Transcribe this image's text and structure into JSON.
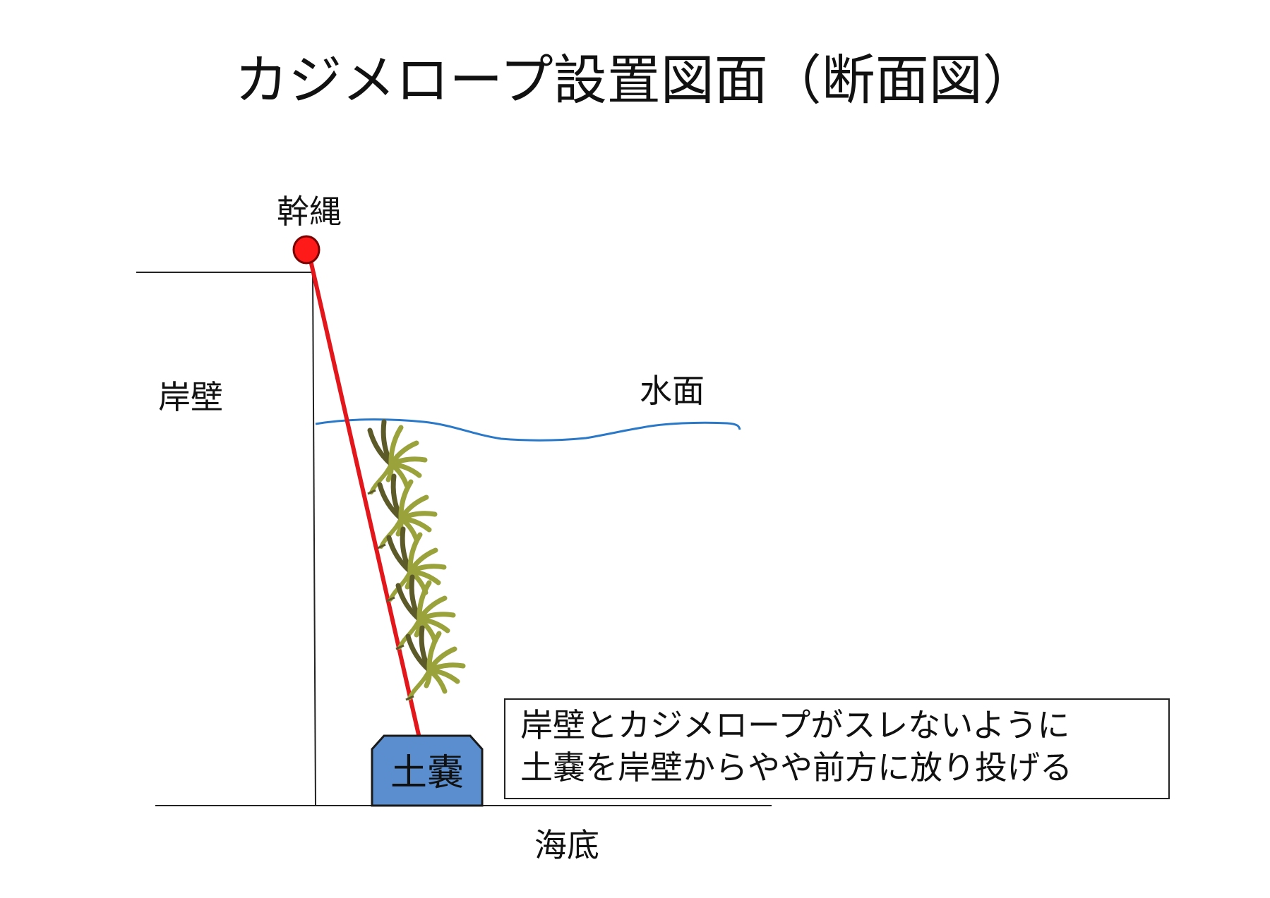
{
  "title": "カジメロープ設置図面（断面図）",
  "labels": {
    "trunk_rope": "幹縄",
    "quay_wall": "岸壁",
    "water_surface": "水面",
    "seabed": "海底",
    "sandbag": "土嚢"
  },
  "note": {
    "line1": "岸壁とカジメロープがスレないように",
    "line2": "土嚢を岸壁からやや前方に放り投げる"
  },
  "colors": {
    "rope": "#e3161b",
    "float": "#ff1a1a",
    "water": "#2a78c8",
    "sandbag": "#5b8ecf",
    "kelp": "#9aa23c",
    "kelp_dark": "#5d5a2a",
    "line": "#222222"
  },
  "kelp_count": 5
}
